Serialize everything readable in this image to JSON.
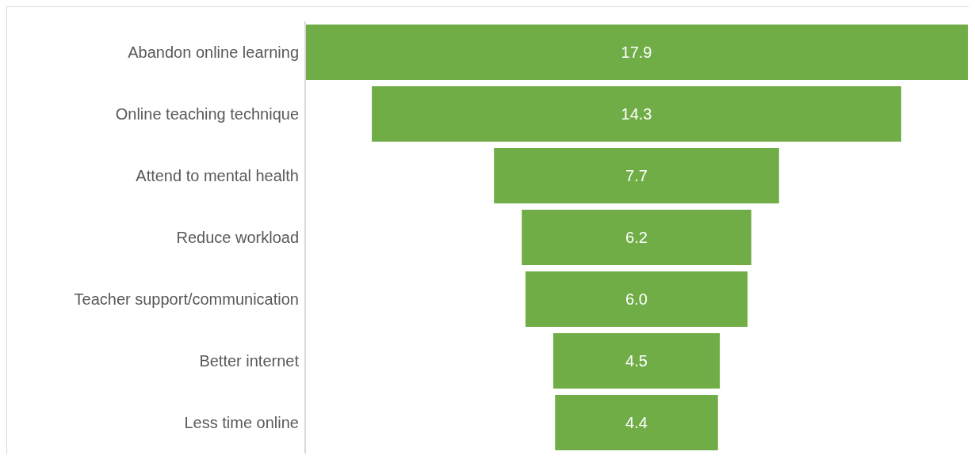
{
  "chart_data": {
    "type": "other",
    "categories": [
      "Abandon online learning",
      "Online teaching technique",
      "Attend to mental health",
      "Reduce workload",
      "Teacher support/communication",
      "Better internet",
      "Less time online"
    ],
    "values": [
      17.9,
      14.3,
      7.7,
      6.2,
      6.0,
      4.5,
      4.4
    ],
    "value_labels": [
      "17.9",
      "14.3",
      "7.7",
      "6.2",
      "6.0",
      "4.5",
      "4.4"
    ],
    "color": "#70ad47"
  }
}
